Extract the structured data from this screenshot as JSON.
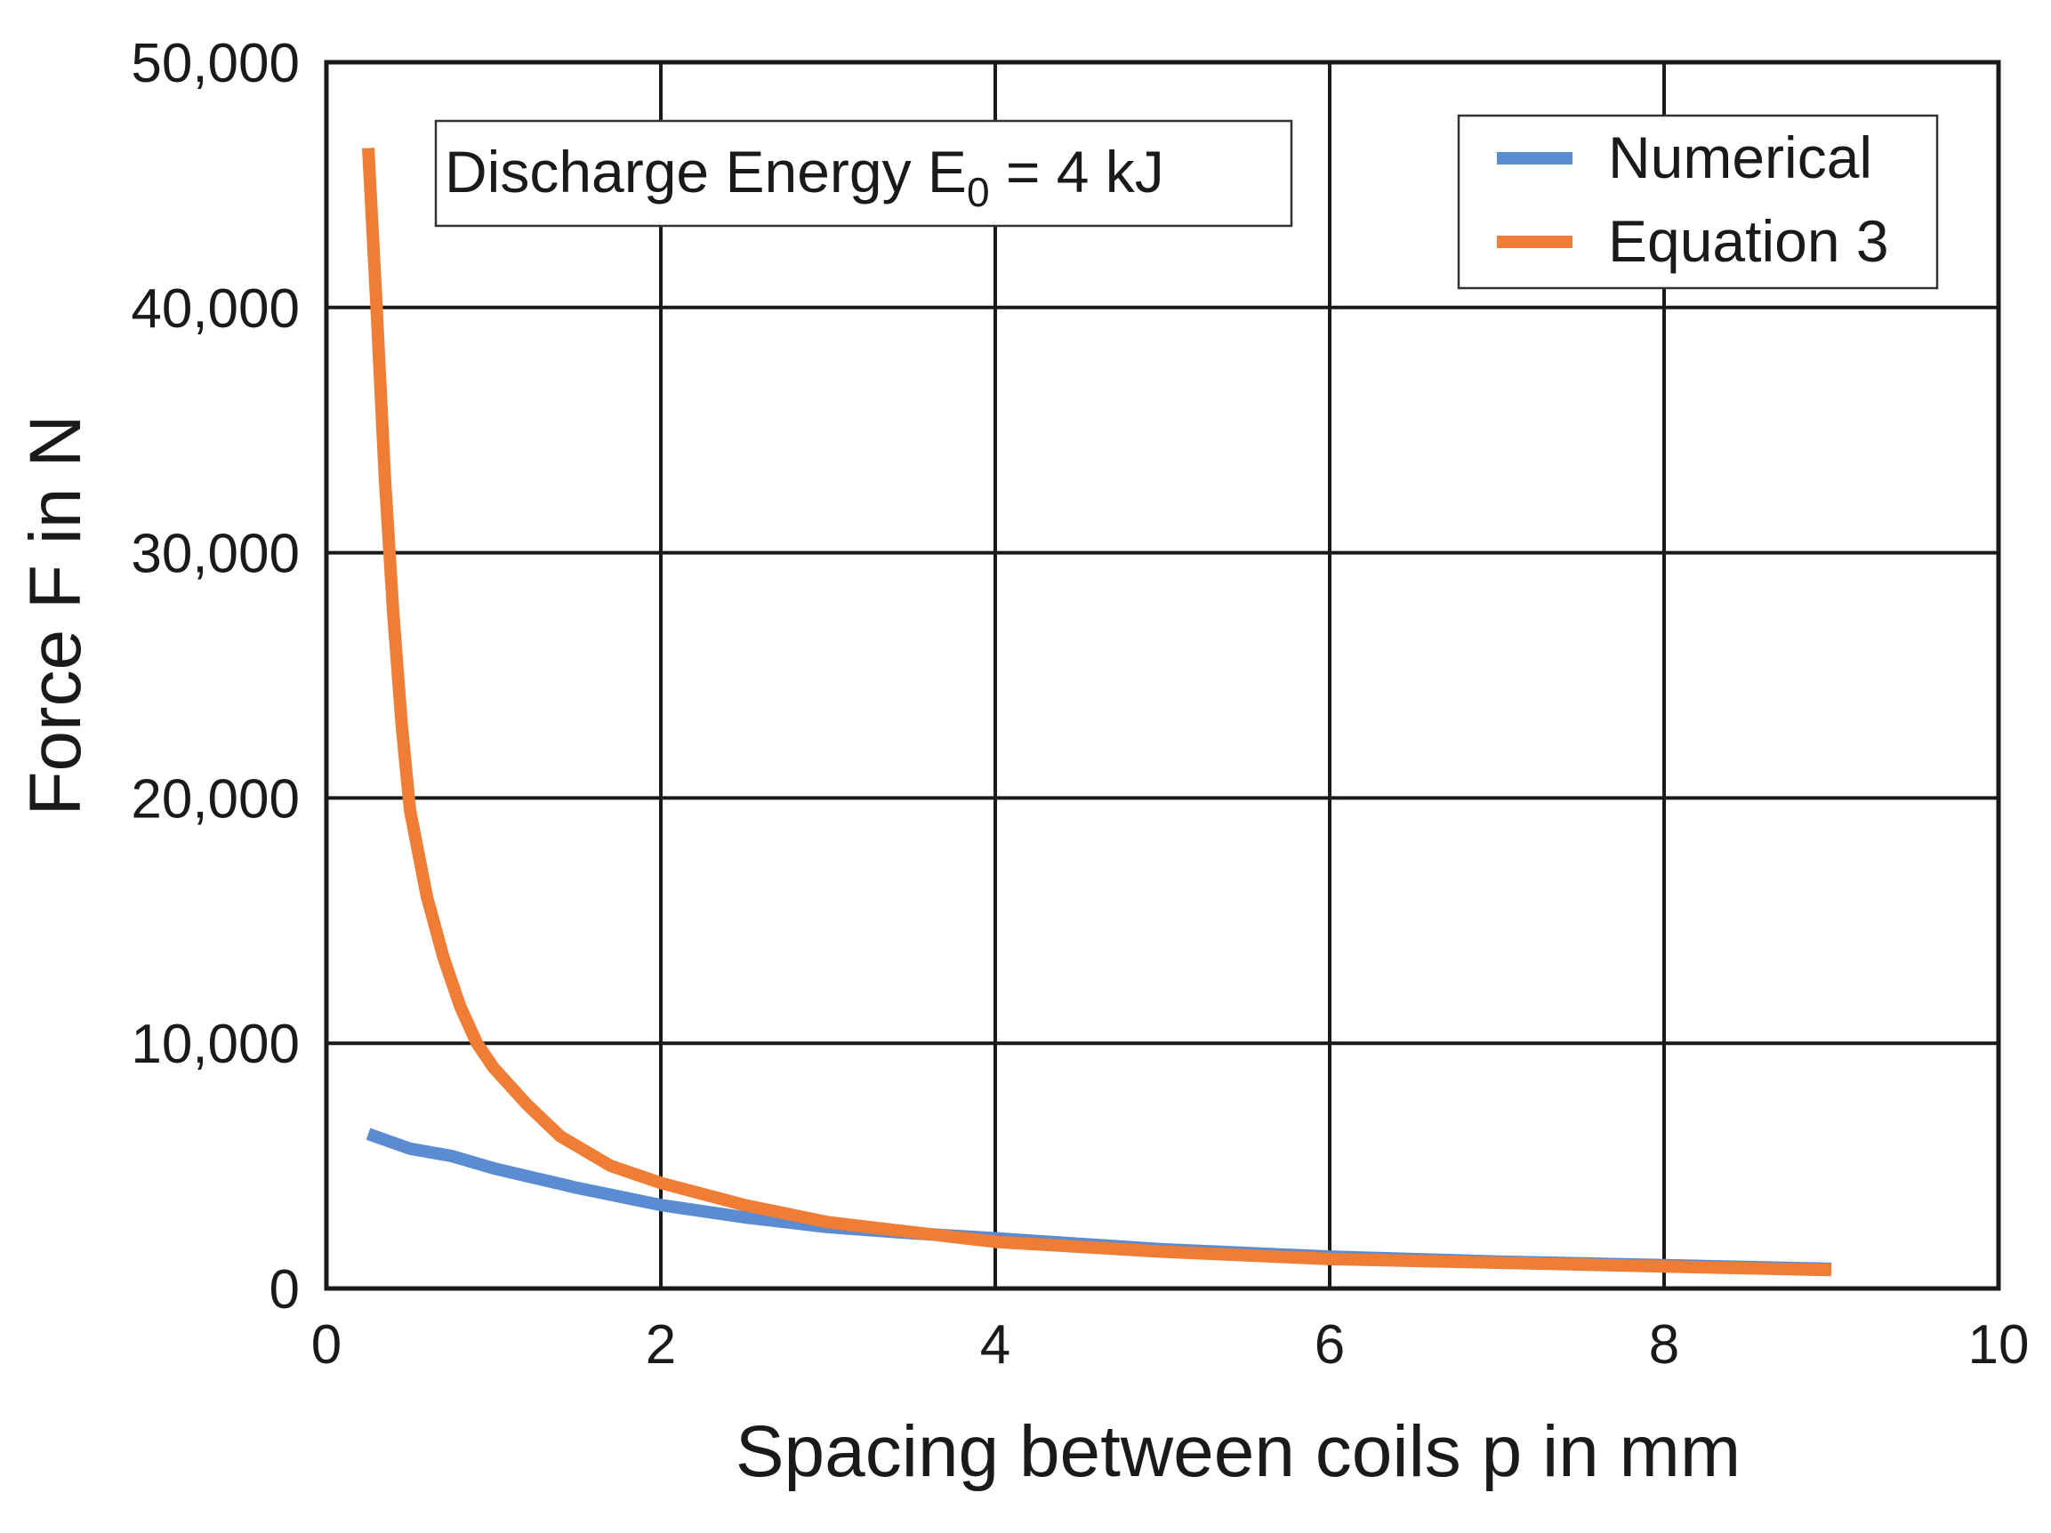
{
  "chart_data": {
    "type": "line",
    "title": "",
    "xlabel": "Spacing between coils p in mm",
    "ylabel": "Force F in N",
    "xlim": [
      0,
      10
    ],
    "ylim": [
      0,
      50000
    ],
    "grid": true,
    "x_ticks": [
      0,
      2,
      4,
      6,
      8,
      10
    ],
    "x_tick_labels": [
      "0",
      "2",
      "4",
      "6",
      "8",
      "10"
    ],
    "y_ticks": [
      0,
      10000,
      20000,
      30000,
      40000,
      50000
    ],
    "y_tick_labels": [
      "0",
      "10,000",
      "20,000",
      "30,000",
      "40,000",
      "50,000"
    ],
    "annotation": {
      "prefix": "Discharge Energy E",
      "subscript": "0",
      "suffix": " = 4 kJ"
    },
    "legend_position": "top-right",
    "series": [
      {
        "name": "Numerical",
        "color": "#5b8bd0",
        "x": [
          0.25,
          0.5,
          0.75,
          1.0,
          1.5,
          2.0,
          2.5,
          3.0,
          3.5,
          4.0,
          5.0,
          6.0,
          7.0,
          8.0,
          9.0
        ],
        "y": [
          6300,
          5700,
          5400,
          4900,
          4100,
          3400,
          2900,
          2500,
          2250,
          2050,
          1600,
          1300,
          1100,
          950,
          800
        ]
      },
      {
        "name": "Equation 3",
        "color": "#ef7d35",
        "x": [
          0.25,
          0.3,
          0.35,
          0.4,
          0.45,
          0.5,
          0.6,
          0.7,
          0.8,
          0.9,
          1.0,
          1.2,
          1.4,
          1.7,
          2.0,
          2.5,
          3.0,
          3.5,
          4.0,
          5.0,
          6.0,
          7.0,
          8.0,
          9.0
        ],
        "y": [
          46500,
          40000,
          33000,
          27500,
          23000,
          19500,
          16000,
          13500,
          11500,
          10000,
          9000,
          7500,
          6200,
          5000,
          4300,
          3400,
          2700,
          2300,
          1900,
          1500,
          1200,
          1050,
          900,
          750
        ]
      }
    ]
  }
}
